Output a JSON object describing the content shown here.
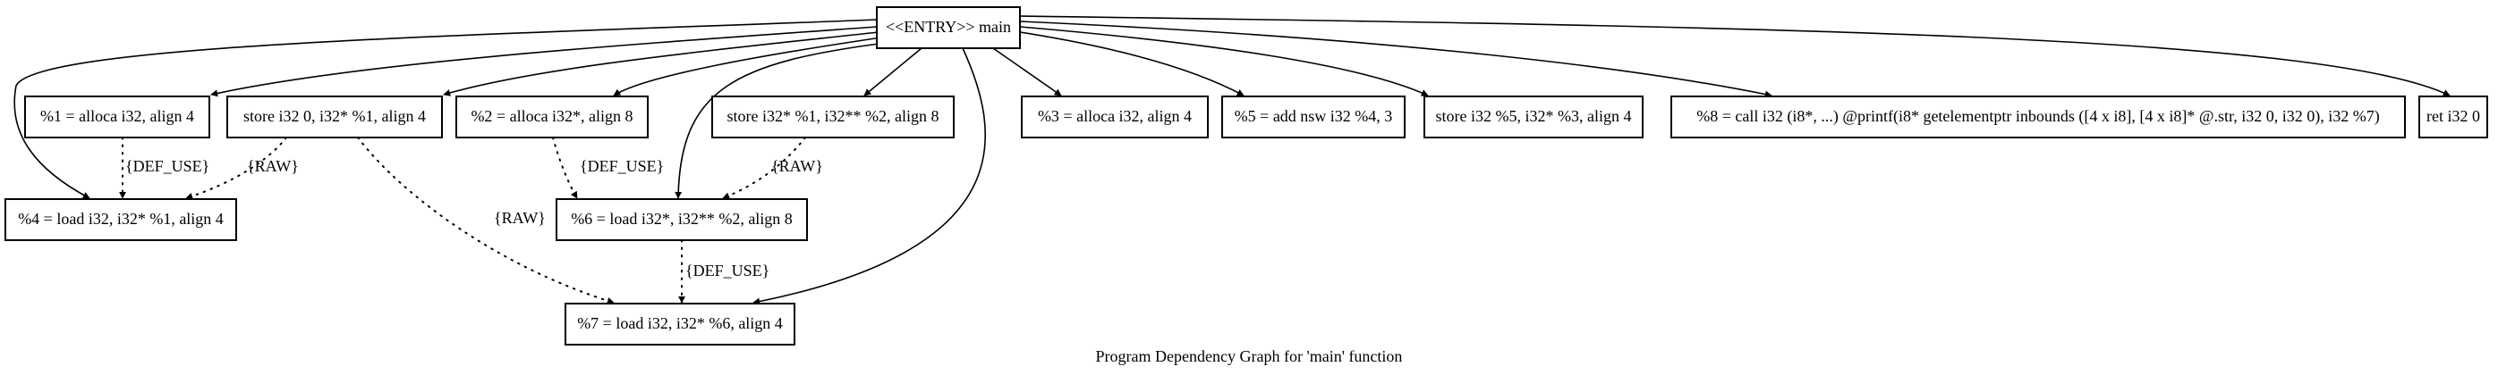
{
  "title": "Program Dependency Graph for 'main' function",
  "nodes": [
    {
      "id": "entry",
      "label": "<<ENTRY>> main"
    },
    {
      "id": "n1",
      "label": "%1 = alloca i32, align 4"
    },
    {
      "id": "s0",
      "label": "store i32 0, i32* %1, align 4"
    },
    {
      "id": "n2",
      "label": "%2 = alloca i32*, align 8"
    },
    {
      "id": "s1",
      "label": "store i32* %1, i32** %2, align 8"
    },
    {
      "id": "n3",
      "label": "%3 = alloca i32, align 4"
    },
    {
      "id": "n5",
      "label": "%5 = add nsw i32 %4, 3"
    },
    {
      "id": "s5",
      "label": "store i32 %5, i32* %3, align 4"
    },
    {
      "id": "n8",
      "label": "%8 = call i32 (i8*, ...) @printf(i8* getelementptr inbounds ([4 x i8], [4 x i8]* @.str, i32 0, i32 0), i32 %7)"
    },
    {
      "id": "ret",
      "label": "ret i32 0"
    },
    {
      "id": "n4",
      "label": "%4 = load i32, i32* %1, align 4"
    },
    {
      "id": "n6",
      "label": "%6 = load i32*, i32** %2, align 8"
    },
    {
      "id": "n7",
      "label": "%7 = load i32, i32* %6, align 4"
    }
  ],
  "edges": [
    {
      "from": "entry",
      "to": "n4",
      "style": "solid"
    },
    {
      "from": "entry",
      "to": "n1",
      "style": "solid"
    },
    {
      "from": "entry",
      "to": "s0",
      "style": "solid"
    },
    {
      "from": "entry",
      "to": "n2",
      "style": "solid"
    },
    {
      "from": "entry",
      "to": "n6",
      "style": "solid"
    },
    {
      "from": "entry",
      "to": "s1",
      "style": "solid"
    },
    {
      "from": "entry",
      "to": "n7",
      "style": "solid"
    },
    {
      "from": "entry",
      "to": "n3",
      "style": "solid"
    },
    {
      "from": "entry",
      "to": "n5",
      "style": "solid"
    },
    {
      "from": "entry",
      "to": "s5",
      "style": "solid"
    },
    {
      "from": "entry",
      "to": "n8",
      "style": "solid"
    },
    {
      "from": "entry",
      "to": "ret",
      "style": "solid"
    },
    {
      "from": "n1",
      "to": "n4",
      "style": "dotted",
      "label": "{DEF_USE}"
    },
    {
      "from": "s0",
      "to": "n4",
      "style": "dotted",
      "label": "{RAW}"
    },
    {
      "from": "s0",
      "to": "n7",
      "style": "dotted",
      "label": "{RAW}"
    },
    {
      "from": "n2",
      "to": "n6",
      "style": "dotted",
      "label": "{DEF_USE}"
    },
    {
      "from": "s1",
      "to": "n6",
      "style": "dotted",
      "label": "{RAW}"
    },
    {
      "from": "n6",
      "to": "n7",
      "style": "dotted",
      "label": "{DEF_USE}"
    }
  ]
}
